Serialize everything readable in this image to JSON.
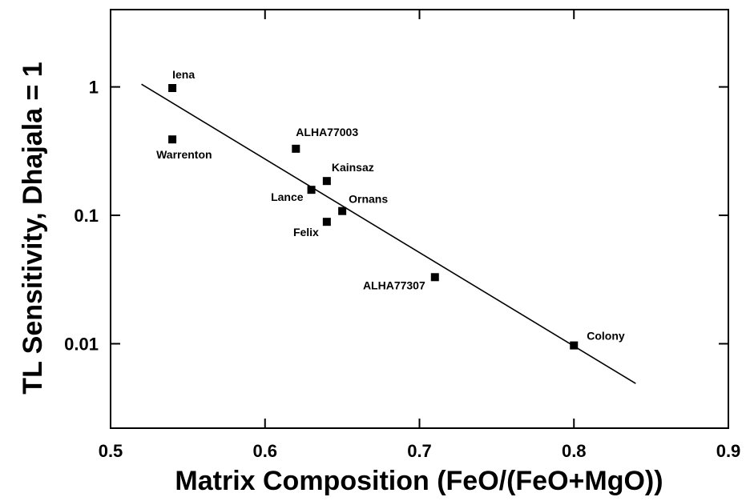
{
  "chart_data": {
    "type": "scatter",
    "xlabel": "Matrix Composition (FeO/(FeO+MgO))",
    "ylabel": "TL Sensitivity, Dhajala = 1",
    "xlim": [
      0.5,
      0.9
    ],
    "ylim": [
      0.0022,
      4.0
    ],
    "yscale": "log",
    "x_ticks": [
      0.5,
      0.6,
      0.7,
      0.8,
      0.9
    ],
    "x_tick_labels": [
      "0.5",
      "0.6",
      "0.7",
      "0.8",
      "0.9"
    ],
    "y_ticks": [
      1,
      0.1,
      0.01
    ],
    "y_tick_labels": [
      "1",
      "0.1",
      "0.01"
    ],
    "grid": false,
    "points": [
      {
        "label": "Iena",
        "x": 0.54,
        "y": 0.98
      },
      {
        "label": "Warrenton",
        "x": 0.54,
        "y": 0.39
      },
      {
        "label": "ALHA77003",
        "x": 0.62,
        "y": 0.33
      },
      {
        "label": "Kainsaz",
        "x": 0.64,
        "y": 0.185
      },
      {
        "label": "Lance",
        "x": 0.63,
        "y": 0.158
      },
      {
        "label": "Ornans",
        "x": 0.65,
        "y": 0.108
      },
      {
        "label": "Felix",
        "x": 0.64,
        "y": 0.089
      },
      {
        "label": "ALHA77307",
        "x": 0.71,
        "y": 0.033
      },
      {
        "label": "Colony",
        "x": 0.8,
        "y": 0.0097
      }
    ],
    "fit_line": {
      "x": [
        0.52,
        0.84
      ],
      "y": [
        1.05,
        0.0049
      ]
    }
  }
}
